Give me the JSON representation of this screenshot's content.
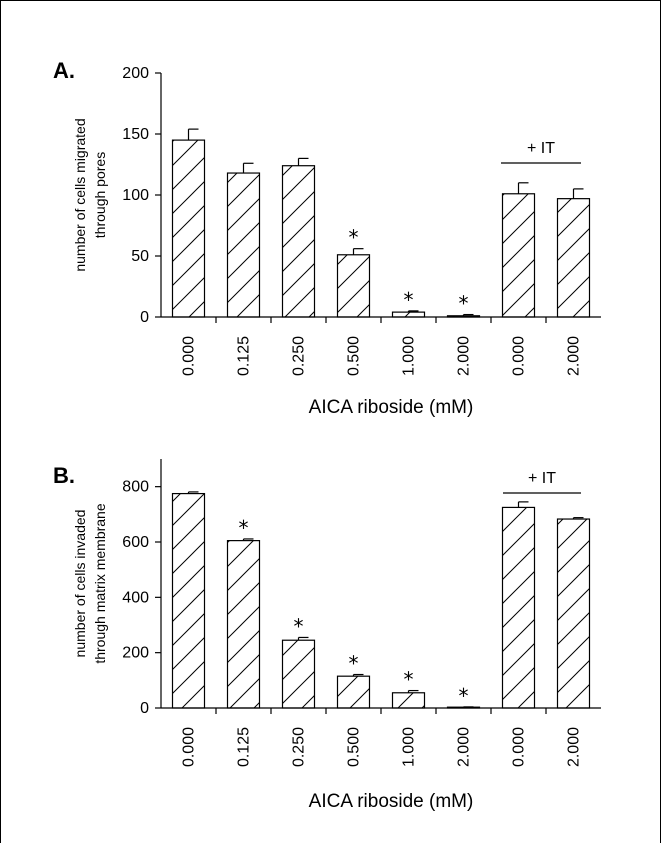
{
  "chart_data": [
    {
      "type": "bar",
      "panel_label": "A.",
      "categories": [
        "0.000",
        "0.125",
        "0.250",
        "0.500",
        "1.000",
        "2.000",
        "0.000",
        "2.000"
      ],
      "values": [
        145,
        118,
        124,
        51,
        4,
        1,
        101,
        97
      ],
      "errors": [
        9,
        8,
        6,
        5,
        1,
        1,
        9,
        8
      ],
      "significant": [
        false,
        false,
        false,
        true,
        true,
        true,
        false,
        false
      ],
      "significance_marker": "*",
      "group_annotation": {
        "label": "+ IT",
        "from_index": 6,
        "to_index": 7
      },
      "xlabel": "AICA riboside (mM)",
      "ylabel_lines": [
        "number of cells migrated",
        "through pores"
      ],
      "ylim": [
        0,
        200
      ],
      "yticks": [
        0,
        50,
        100,
        150,
        200
      ],
      "bar_pattern": "diagonal-hatch",
      "grid": false
    },
    {
      "type": "bar",
      "panel_label": "B.",
      "categories": [
        "0.000",
        "0.125",
        "0.250",
        "0.500",
        "1.000",
        "2.000",
        "0.000",
        "2.000"
      ],
      "values": [
        775,
        605,
        245,
        115,
        55,
        3,
        725,
        683
      ],
      "errors": [
        6,
        6,
        10,
        6,
        8,
        1,
        20,
        5
      ],
      "significant": [
        false,
        true,
        true,
        true,
        true,
        true,
        false,
        false
      ],
      "significance_marker": "*",
      "group_annotation": {
        "label": "+ IT",
        "from_index": 6,
        "to_index": 7
      },
      "xlabel": "AICA riboside (mM)",
      "ylabel_lines": [
        "number of cells invaded",
        "through matrix membrane"
      ],
      "ylim": [
        0,
        900
      ],
      "yticks": [
        0,
        200,
        400,
        600,
        800
      ],
      "bar_pattern": "diagonal-hatch",
      "grid": false
    }
  ]
}
